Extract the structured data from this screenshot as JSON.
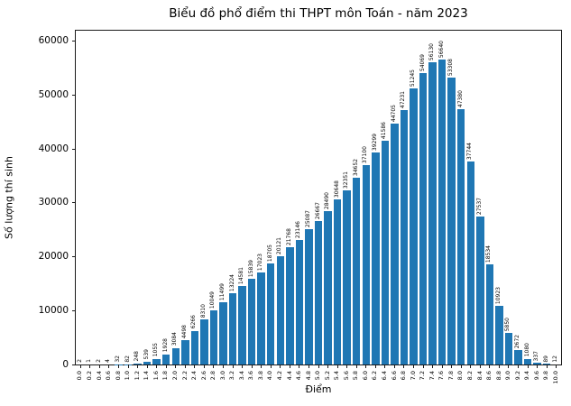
{
  "chart_data": {
    "type": "bar",
    "title": "Biểu đồ phổ điểm thi THPT môn Toán - năm 2023",
    "xlabel": "Điểm",
    "ylabel": "Số lượng thí sinh",
    "bar_color": "#1f77b4",
    "grid": false,
    "legend": null,
    "ylim": [
      0,
      62000
    ],
    "yticks": [
      0,
      10000,
      20000,
      30000,
      40000,
      50000,
      60000
    ],
    "categories": [
      "0.0",
      "0.2",
      "0.4",
      "0.6",
      "0.8",
      "1.0",
      "1.2",
      "1.4",
      "1.6",
      "1.8",
      "2.0",
      "2.2",
      "2.4",
      "2.6",
      "2.8",
      "3.0",
      "3.2",
      "3.4",
      "3.6",
      "3.8",
      "4.0",
      "4.2",
      "4.4",
      "4.6",
      "4.8",
      "5.0",
      "5.2",
      "5.4",
      "5.6",
      "5.8",
      "6.0",
      "6.2",
      "6.4",
      "6.6",
      "6.8",
      "7.0",
      "7.2",
      "7.4",
      "7.6",
      "7.8",
      "8.0",
      "8.2",
      "8.4",
      "8.6",
      "8.8",
      "9.0",
      "9.2",
      "9.4",
      "9.6",
      "9.8",
      "10.0"
    ],
    "values": [
      2,
      1,
      2,
      4,
      32,
      82,
      248,
      539,
      1055,
      1928,
      3084,
      4498,
      6266,
      8310,
      10049,
      11499,
      13224,
      14581,
      15839,
      17023,
      18705,
      20121,
      21768,
      23146,
      25087,
      26667,
      28490,
      30648,
      32351,
      34652,
      37100,
      39299,
      41586,
      44705,
      47231,
      51245,
      54069,
      56130,
      56640,
      53308,
      47380,
      37744,
      27537,
      18534,
      10923,
      5850,
      2672,
      1080,
      337,
      89,
      12
    ]
  }
}
